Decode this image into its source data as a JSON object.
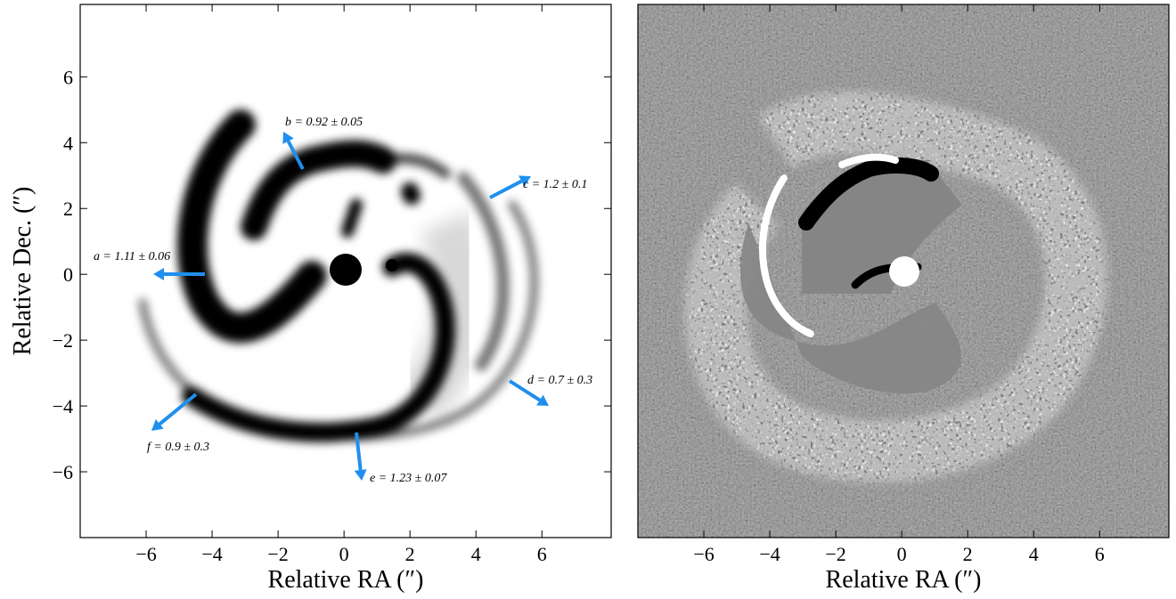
{
  "chart_data": [
    {
      "type": "image",
      "xlabel": "Relative RA (″)",
      "ylabel": "Relative Dec. (″)",
      "xlim": [
        -8,
        8.1
      ],
      "ylim": [
        -8,
        8.2
      ],
      "xticks": [
        {
          "value": -6,
          "label": "−6"
        },
        {
          "value": -4,
          "label": "−4"
        },
        {
          "value": -2,
          "label": "−2"
        },
        0,
        2,
        4,
        6
      ],
      "yticks": [
        {
          "value": -6,
          "label": "−6"
        },
        {
          "value": -4,
          "label": "−4"
        },
        {
          "value": -2,
          "label": "−2"
        },
        0,
        2,
        4,
        6
      ],
      "annotations": [
        "a = 1.11 ± 0.06",
        "b = 0.92 ± 0.05",
        "c = 1.2 ± 0.1",
        "d = 0.7 ± 0.3",
        "e = 1.23 ± 0.07",
        "f = 0.9 ± 0.3"
      ],
      "arrow_color": "#1f8fef"
    },
    {
      "type": "image",
      "xlabel": "Relative RA (″)",
      "xlim": [
        -8,
        8.1
      ],
      "ylim": [
        -8,
        8.2
      ],
      "xticks": [
        {
          "value": -6,
          "label": "−6"
        },
        {
          "value": -4,
          "label": "−4"
        },
        {
          "value": -2,
          "label": "−2"
        },
        0,
        2,
        4,
        6
      ]
    }
  ]
}
